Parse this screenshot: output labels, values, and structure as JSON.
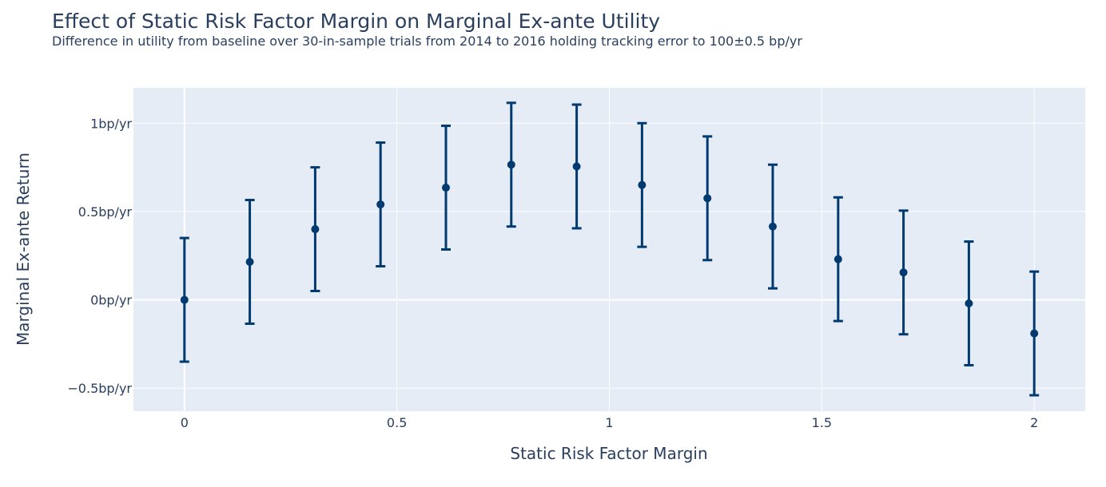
{
  "chart_data": {
    "type": "scatter",
    "title": "Effect of Static Risk Factor Margin on Marginal Ex-ante Utility",
    "subtitle": "Difference in utility from baseline over 30-in-sample trials from 2014 to 2016 holding tracking error to 100±0.5 bp/yr",
    "xlabel": "Static Risk Factor Margin",
    "ylabel": "Marginal Ex-ante Return",
    "xlim": [
      -0.12,
      2.12
    ],
    "ylim": [
      -0.63,
      1.2
    ],
    "x_ticks": [
      {
        "value": 0,
        "label": "0"
      },
      {
        "value": 0.5,
        "label": "0.5"
      },
      {
        "value": 1,
        "label": "1"
      },
      {
        "value": 1.5,
        "label": "1.5"
      },
      {
        "value": 2,
        "label": "2"
      }
    ],
    "y_ticks": [
      {
        "value": -0.5,
        "label": "−0.5bp/yr"
      },
      {
        "value": 0,
        "label": "0bp/yr"
      },
      {
        "value": 0.5,
        "label": "0.5bp/yr"
      },
      {
        "value": 1,
        "label": "1bp/yr"
      }
    ],
    "grid": true,
    "x": [
      0,
      0.1538,
      0.3077,
      0.4615,
      0.6154,
      0.7692,
      0.9231,
      1.0769,
      1.2308,
      1.3846,
      1.5385,
      1.6923,
      1.8462,
      2.0
    ],
    "y": [
      0.0,
      0.215,
      0.4,
      0.54,
      0.635,
      0.765,
      0.755,
      0.65,
      0.575,
      0.415,
      0.23,
      0.155,
      -0.02,
      -0.19
    ],
    "error": [
      0.35,
      0.35,
      0.35,
      0.35,
      0.35,
      0.35,
      0.35,
      0.35,
      0.35,
      0.35,
      0.35,
      0.35,
      0.35,
      0.35
    ],
    "colors": {
      "marker": "#003a70",
      "plot_bg": "#e5ecf6",
      "grid": "#ffffff",
      "text": "#2a3f5f"
    }
  }
}
